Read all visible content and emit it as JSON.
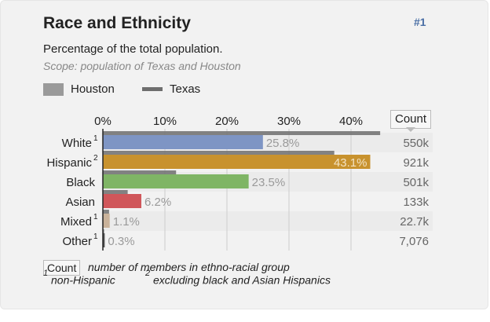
{
  "card": {
    "title": "Race and Ethnicity",
    "rank": "#1",
    "subtitle": "Percentage of the total population.",
    "scope": "Scope: population of Texas and Houston"
  },
  "legend": {
    "houston": "Houston",
    "texas": "Texas"
  },
  "count_header": "Count",
  "footer": {
    "count_label": "Count",
    "count_desc": "number of members in ethno-racial group",
    "note1_marker": "1",
    "note1_text": "non-Hispanic",
    "note2_marker": "2",
    "note2_text": "excluding black and Asian Hispanics"
  },
  "colors": {
    "white": "#7e95c4",
    "hispanic": "#c8922e",
    "black": "#7fb565",
    "asian": "#d0565a",
    "mixed": "#c9b29a",
    "other": "#555555",
    "texas_line": "#6e6e6e",
    "grid": "#cccccc"
  },
  "chart_data": {
    "type": "bar",
    "title": "Race and Ethnicity",
    "xlabel": "Percentage of the total population",
    "xlim": [
      0,
      50
    ],
    "x_ticks": [
      "0%",
      "10%",
      "20%",
      "30%",
      "40%"
    ],
    "x_tick_values": [
      0,
      10,
      20,
      30,
      40
    ],
    "categories": [
      "White",
      "Hispanic",
      "Black",
      "Asian",
      "Mixed",
      "Other"
    ],
    "category_notes": [
      "1",
      "2",
      "",
      "",
      "1",
      "1"
    ],
    "series": [
      {
        "name": "Houston",
        "values": [
          25.8,
          43.1,
          23.5,
          6.2,
          1.1,
          0.3
        ],
        "labels": [
          "25.8%",
          "43.1%",
          "23.5%",
          "6.2%",
          "1.1%",
          "0.3%"
        ]
      },
      {
        "name": "Texas",
        "values": [
          44.7,
          37.3,
          11.8,
          4.0,
          1.0,
          0.2
        ]
      }
    ],
    "counts": [
      "550k",
      "921k",
      "501k",
      "133k",
      "22.7k",
      "7,076"
    ]
  }
}
